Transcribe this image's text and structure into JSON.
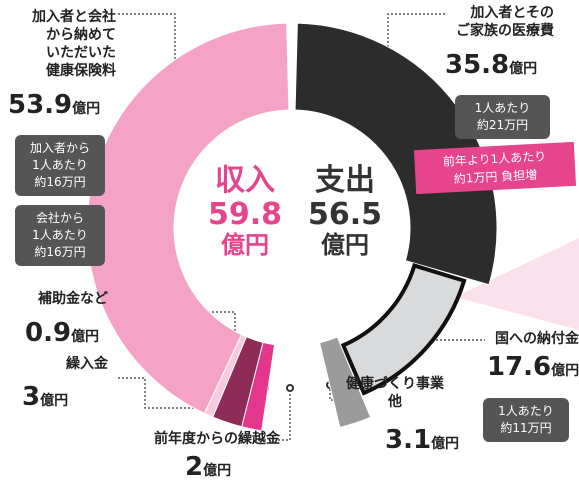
{
  "chart_data": [
    {
      "type": "half-donut",
      "side": "left",
      "title": "収入",
      "total": 59.8,
      "unit": "億円",
      "categories": [
        "加入者と会社\nから納めて\nいただいた\n健康保険料",
        "補助金など",
        "繰入金",
        "前年度からの繰越金"
      ],
      "values": [
        53.9,
        0.9,
        3.0,
        2.0
      ],
      "colors": [
        "#f4a3c6",
        "#f9cadd",
        "#8e2b57",
        "#e2378a"
      ],
      "callouts": [
        "加入者から\n1人あたり\n約16万円",
        "会社から\n1人あたり\n約16万円"
      ]
    },
    {
      "type": "half-donut",
      "side": "right",
      "title": "支出",
      "total": 56.5,
      "unit": "億円",
      "categories": [
        "加入者とその\nご家族の医療費",
        "国への納付金",
        "健康づくり事業\n他"
      ],
      "values": [
        35.8,
        17.6,
        3.1
      ],
      "colors": [
        "#2c2c2c",
        "#d9dadc",
        "#9b9b9b"
      ],
      "callouts": [
        "1人あたり\n約21万円",
        "1人あたり\n約11万円"
      ],
      "banner": "前年より1人あたり\n約1万円 負担増"
    }
  ]
}
